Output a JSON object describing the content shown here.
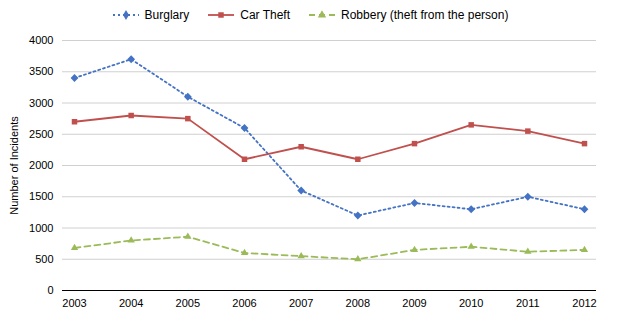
{
  "chart_data": {
    "type": "line",
    "x": [
      2003,
      2004,
      2005,
      2006,
      2007,
      2008,
      2009,
      2010,
      2011,
      2012
    ],
    "series": [
      {
        "name": "Burglary",
        "color": "#4472c4",
        "marker": "diamond",
        "line_style": "dotted",
        "values": [
          3400,
          3700,
          3100,
          2600,
          1600,
          1200,
          1400,
          1300,
          1500,
          1300
        ]
      },
      {
        "name": "Car Theft",
        "color": "#c0504d",
        "marker": "square",
        "line_style": "solid",
        "values": [
          2700,
          2800,
          2750,
          2100,
          2300,
          2100,
          2350,
          2650,
          2550,
          2350
        ]
      },
      {
        "name": "Robbery (theft from the person)",
        "color": "#9bbb59",
        "marker": "triangle",
        "line_style": "dashed",
        "values": [
          680,
          800,
          860,
          600,
          550,
          500,
          650,
          700,
          620,
          650
        ]
      }
    ],
    "ylabel": "Number of Incidents",
    "xlim": [
      2003,
      2012
    ],
    "xticks": [
      2003,
      2004,
      2005,
      2006,
      2007,
      2008,
      2009,
      2010,
      2011,
      2012
    ],
    "ylim": [
      0,
      4000
    ],
    "yticks": [
      0,
      500,
      1000,
      1500,
      2000,
      2500,
      3000,
      3500,
      4000
    ],
    "grid": true,
    "legend": "top"
  }
}
